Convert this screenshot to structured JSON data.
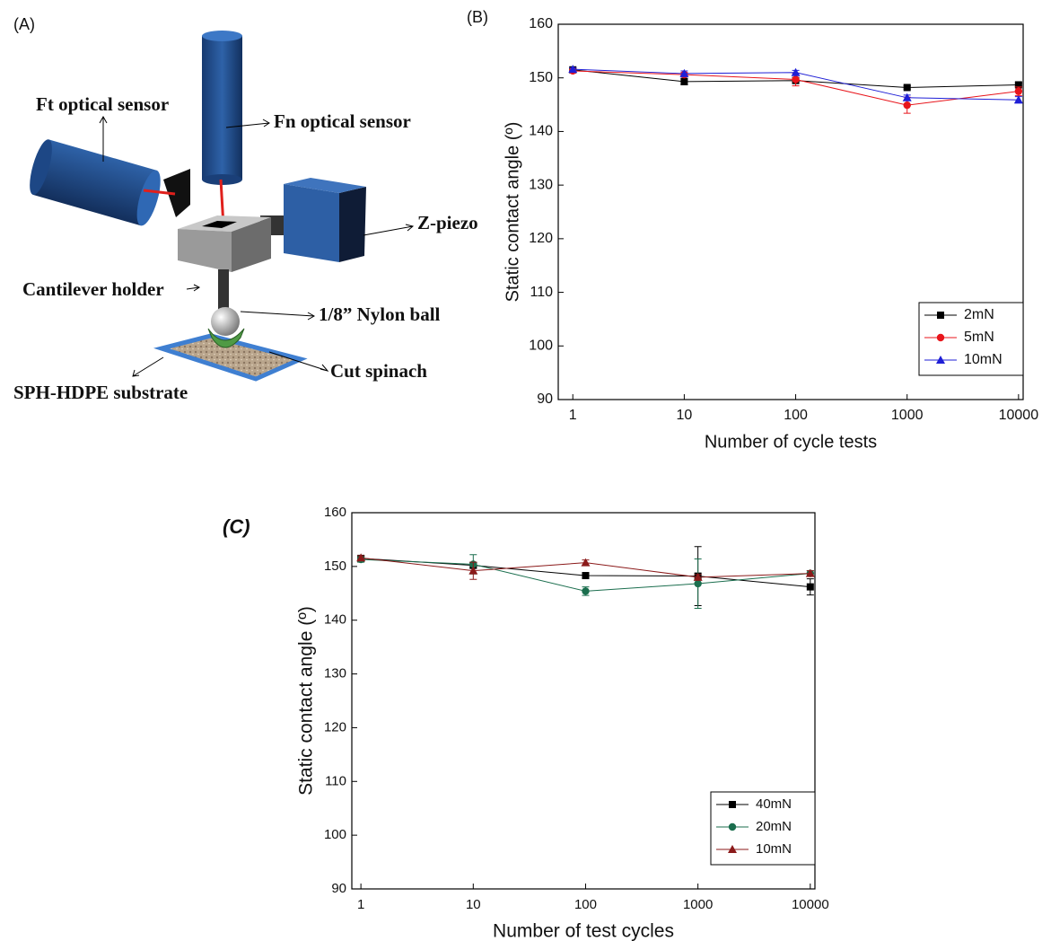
{
  "panels": {
    "a": "(A)"
  },
  "diagram": {
    "ft_sensor": "Ft optical sensor",
    "fn_sensor": "Fn optical sensor",
    "z_piezo": "Z-piezo",
    "cantilever_holder": "Cantilever holder",
    "nylon_ball": "1/8” Nylon ball",
    "cut_spinach": "Cut spinach",
    "substrate": "SPH-HDPE substrate"
  },
  "chart_data": [
    {
      "type": "line",
      "label": "(B)",
      "x_label": "Number of cycle tests",
      "y_label": "Static contact angle (º)",
      "x": [
        1,
        10,
        100,
        1000,
        10000
      ],
      "xlog": true,
      "xlim": [
        0.74,
        11000
      ],
      "xticks": [
        1,
        10,
        100,
        1000,
        10000
      ],
      "ylim": [
        90,
        160
      ],
      "yticks": [
        90,
        100,
        110,
        120,
        130,
        140,
        150,
        160
      ],
      "legend": "lower right",
      "series": [
        {
          "name": "2mN",
          "color": "#000000",
          "marker": "square",
          "values": [
            151.5,
            149.3,
            149.5,
            148.2,
            148.7
          ],
          "errors": [
            0.3,
            0.6,
            0.5,
            0.3,
            0.3
          ]
        },
        {
          "name": "5mN",
          "color": "#e8151b",
          "marker": "circle",
          "values": [
            151.3,
            150.6,
            149.7,
            144.9,
            147.5
          ],
          "errors": [
            0.3,
            0.4,
            1.2,
            1.5,
            0.8
          ]
        },
        {
          "name": "10mN",
          "color": "#1f1fd6",
          "marker": "triangle",
          "values": [
            151.6,
            150.8,
            151.0,
            146.3,
            145.9
          ],
          "errors": [
            0.3,
            0.5,
            0.4,
            0.5,
            0.6
          ]
        }
      ]
    },
    {
      "type": "line",
      "label": "(C)",
      "x_label": "Number of test cycles",
      "y_label": "Static contact angle (º)",
      "x": [
        1,
        10,
        100,
        1000,
        10000
      ],
      "xlog": true,
      "xlim": [
        0.83,
        11000
      ],
      "xticks": [
        1,
        10,
        100,
        1000,
        10000
      ],
      "ylim": [
        90,
        160
      ],
      "yticks": [
        90,
        100,
        110,
        120,
        130,
        140,
        150,
        160
      ],
      "legend": "lower right",
      "series": [
        {
          "name": "40mN",
          "color": "#000000",
          "marker": "square",
          "values": [
            151.5,
            150.2,
            148.3,
            148.2,
            146.2
          ],
          "errors": [
            0.4,
            0.5,
            0.5,
            5.5,
            1.5
          ]
        },
        {
          "name": "20mN",
          "color": "#1b6e4e",
          "marker": "circle",
          "values": [
            151.3,
            150.4,
            145.4,
            146.8,
            148.7
          ],
          "errors": [
            0.5,
            1.8,
            0.8,
            4.6,
            0.5
          ]
        },
        {
          "name": "10mN",
          "color": "#8b1a1a",
          "marker": "triangle",
          "values": [
            151.6,
            149.2,
            150.7,
            148.0,
            148.7
          ],
          "errors": [
            0.4,
            1.6,
            0.5,
            0.5,
            0.5
          ]
        }
      ]
    }
  ]
}
